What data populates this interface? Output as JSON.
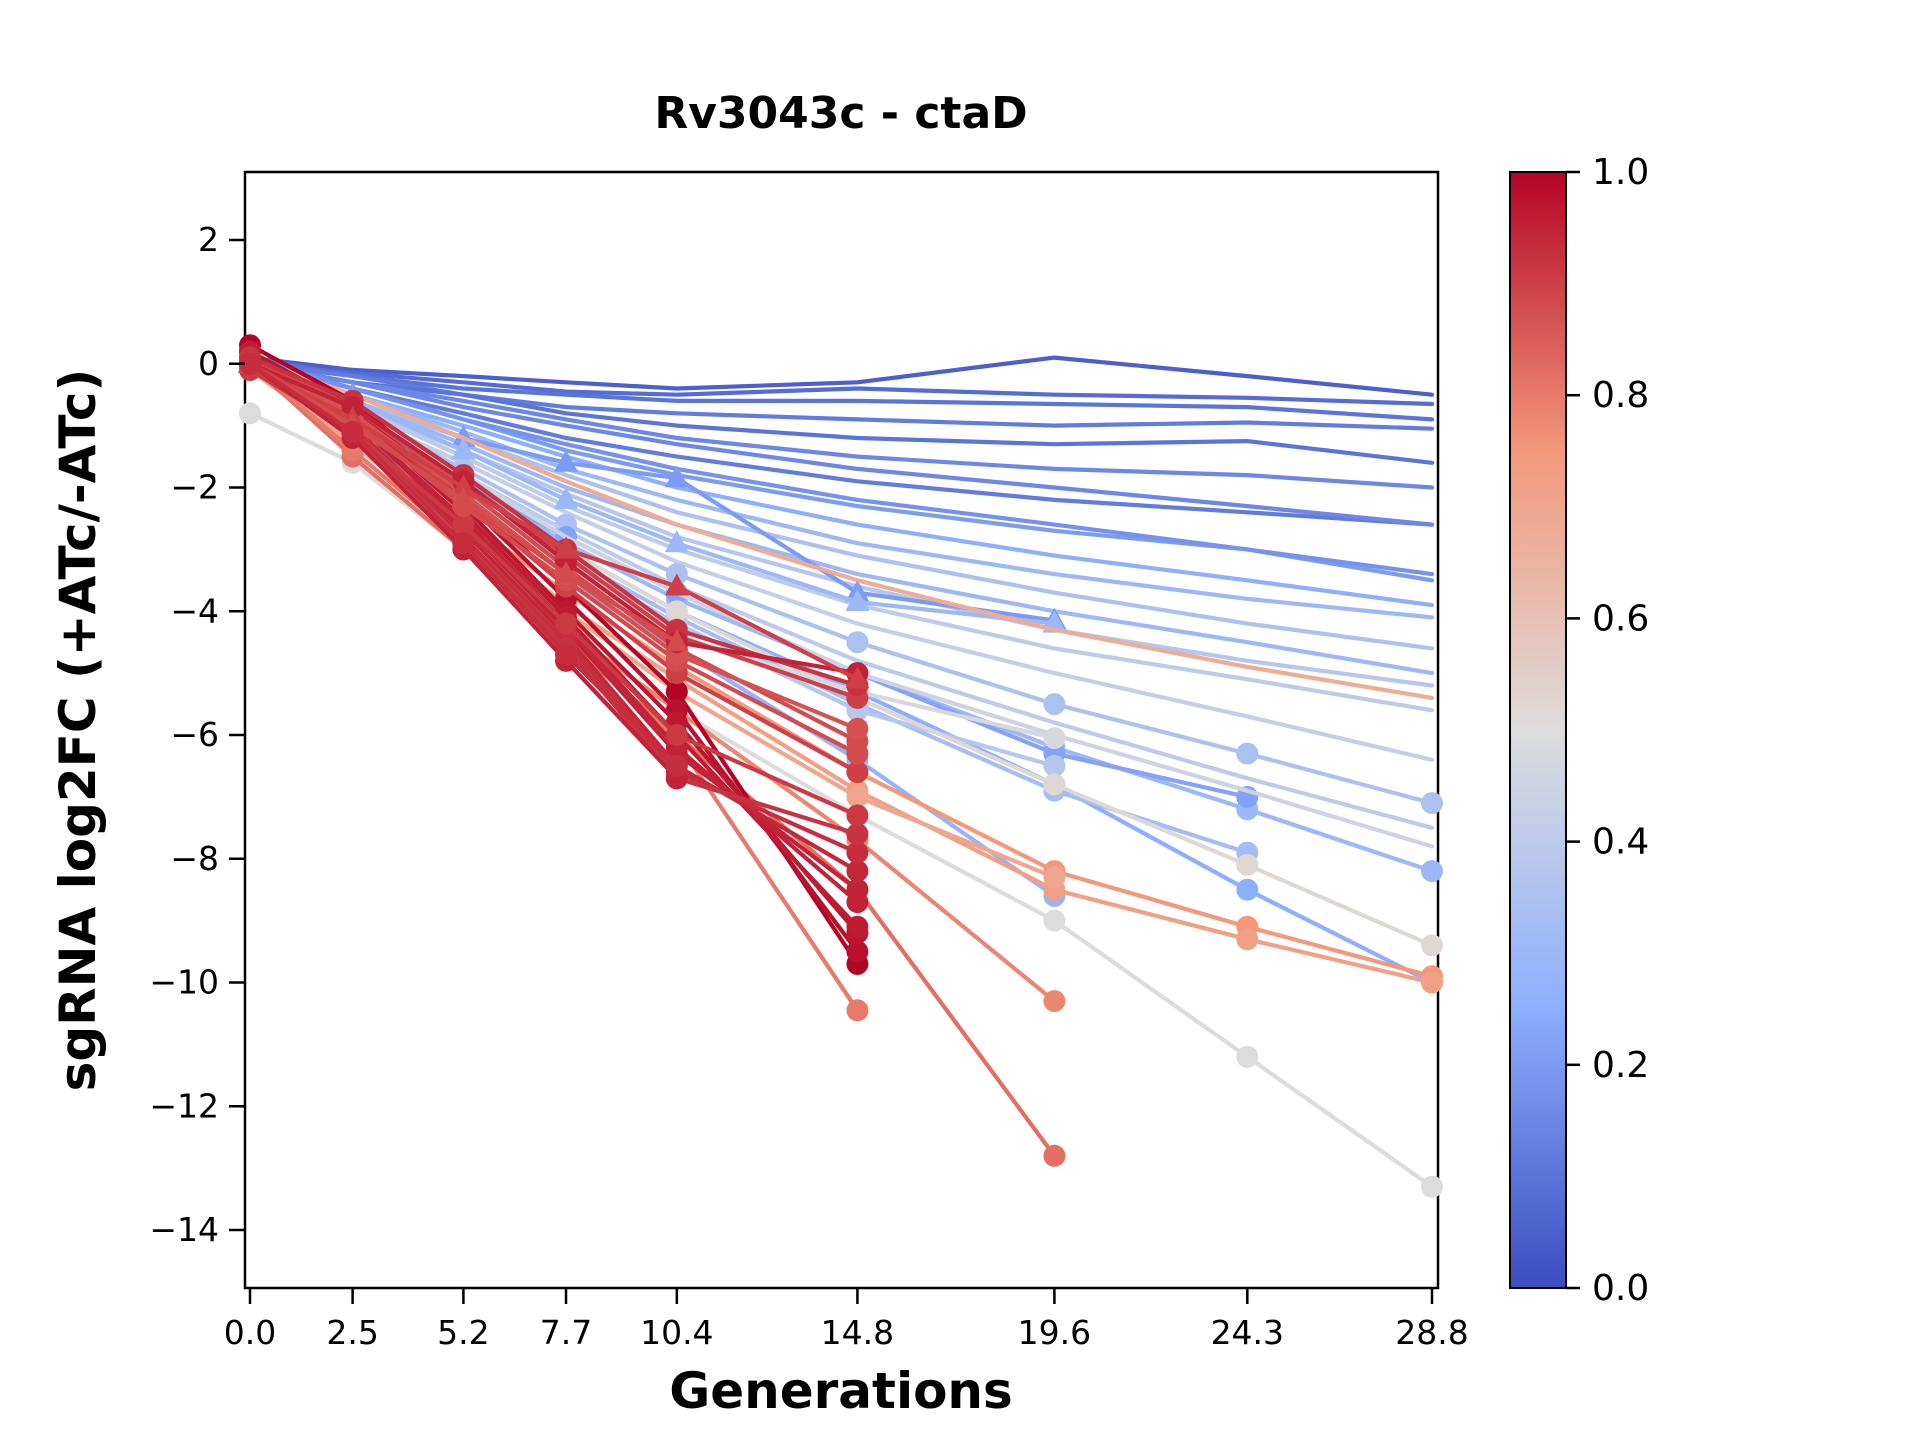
{
  "chart_data": {
    "type": "line",
    "title": "Rv3043c - ctaD",
    "xlabel": "Generations",
    "ylabel": "sgRNA log2FC (+ATc/-ATc)",
    "x": [
      0.0,
      2.5,
      5.2,
      7.7,
      10.4,
      14.8,
      19.6,
      24.3,
      28.8
    ],
    "xtick_labels": [
      "0.0",
      "2.5",
      "5.2",
      "7.7",
      "10.4",
      "14.8",
      "19.6",
      "24.3",
      "28.8"
    ],
    "ytick_values": [
      2,
      0,
      -2,
      -4,
      -6,
      -8,
      -10,
      -12,
      -14
    ],
    "ytick_labels": [
      "2",
      "0",
      "−2",
      "−4",
      "−6",
      "−8",
      "−10",
      "−12",
      "−14"
    ],
    "xlim": [
      -0.35,
      29.15
    ],
    "ylim": [
      -14.95,
      3.1
    ],
    "grid": false,
    "legend": "none",
    "colorbar": {
      "ticks": [
        "1.0",
        "0.8",
        "0.6",
        "0.4",
        "0.2",
        "0.0"
      ],
      "tick_values": [
        1.0,
        0.8,
        0.6,
        0.4,
        0.2,
        0.0
      ],
      "colormap": "coolwarm",
      "anchor_colors": [
        "#3b4cc0",
        "#8caffe",
        "#dddcdc",
        "#f4987a",
        "#b40426"
      ]
    },
    "series_note": "v = colormap value (0=blue,1=red); y aligned to x from start, shorter series end early; marker at every point when not none",
    "series": [
      {
        "v": 0.05,
        "marker": "none",
        "y": [
          0.1,
          -0.1,
          -0.2,
          -0.3,
          -0.4,
          -0.3,
          0.1,
          -0.2,
          -0.5
        ]
      },
      {
        "v": 0.08,
        "marker": "none",
        "y": [
          0,
          -0.15,
          -0.3,
          -0.45,
          -0.5,
          -0.4,
          -0.5,
          -0.55,
          -0.65
        ]
      },
      {
        "v": 0.1,
        "marker": "none",
        "y": [
          0.1,
          -0.2,
          -0.4,
          -0.5,
          -0.6,
          -0.6,
          -0.65,
          -0.7,
          -0.9
        ]
      },
      {
        "v": 0.12,
        "marker": "none",
        "y": [
          0,
          -0.2,
          -0.5,
          -0.7,
          -0.8,
          -0.9,
          -1.0,
          -0.95,
          -1.05
        ]
      },
      {
        "v": 0.1,
        "marker": "none",
        "y": [
          0,
          -0.3,
          -0.5,
          -0.8,
          -1.0,
          -1.2,
          -1.3,
          -1.25,
          -1.6
        ]
      },
      {
        "v": 0.15,
        "marker": "none",
        "y": [
          0,
          -0.3,
          -0.6,
          -0.9,
          -1.2,
          -1.5,
          -1.7,
          -1.8,
          -2.0
        ]
      },
      {
        "v": 0.12,
        "marker": "none",
        "y": [
          0.1,
          -0.4,
          -0.8,
          -1.2,
          -1.5,
          -1.9,
          -2.2,
          -2.4,
          -2.6
        ]
      },
      {
        "v": 0.15,
        "marker": "none",
        "y": [
          0,
          -0.3,
          -0.7,
          -1.0,
          -1.3,
          -1.7,
          -2.0,
          -2.3,
          -2.6
        ]
      },
      {
        "v": 0.2,
        "marker": "none",
        "y": [
          0,
          -0.4,
          -0.9,
          -1.4,
          -1.8,
          -2.3,
          -2.7,
          -3.0,
          -3.5
        ]
      },
      {
        "v": 0.18,
        "marker": "none",
        "y": [
          0.1,
          -0.4,
          -0.9,
          -1.3,
          -1.7,
          -2.2,
          -2.6,
          -3.0,
          -3.4
        ]
      },
      {
        "v": 0.25,
        "marker": "none",
        "y": [
          0,
          -0.5,
          -1.0,
          -1.5,
          -2.0,
          -2.6,
          -3.1,
          -3.5,
          -3.9
        ]
      },
      {
        "v": 0.3,
        "marker": "none",
        "y": [
          0,
          -0.5,
          -1.1,
          -1.7,
          -2.2,
          -2.9,
          -3.4,
          -3.8,
          -4.1
        ]
      },
      {
        "v": 0.35,
        "marker": "none",
        "y": [
          0.1,
          -0.6,
          -1.2,
          -1.8,
          -2.4,
          -3.1,
          -3.7,
          -4.2,
          -4.6
        ]
      },
      {
        "v": 0.3,
        "marker": "none",
        "y": [
          0,
          -0.6,
          -1.3,
          -2.0,
          -2.6,
          -3.4,
          -4.0,
          -4.5,
          -5.0
        ]
      },
      {
        "v": 0.38,
        "marker": "none",
        "y": [
          0,
          -0.7,
          -1.4,
          -2.1,
          -2.8,
          -3.6,
          -4.3,
          -4.8,
          -5.2
        ]
      },
      {
        "v": 0.4,
        "marker": "none",
        "y": [
          0,
          -0.7,
          -1.5,
          -2.3,
          -3.0,
          -3.9,
          -4.6,
          -5.1,
          -5.6
        ]
      },
      {
        "v": 0.42,
        "marker": "none",
        "y": [
          0,
          -0.8,
          -1.6,
          -2.4,
          -3.2,
          -4.2,
          -5.0,
          -5.7,
          -6.4
        ]
      },
      {
        "v": 0.35,
        "marker": "circle",
        "y": [
          0,
          -0.8,
          -1.7,
          -2.6,
          -3.4,
          -4.5,
          -5.5,
          -6.3,
          -7.1
        ]
      },
      {
        "v": 0.4,
        "marker": "none",
        "y": [
          0,
          -0.9,
          -1.8,
          -2.7,
          -3.6,
          -4.8,
          -5.8,
          -6.7,
          -7.5
        ]
      },
      {
        "v": 0.3,
        "marker": "circle",
        "y": [
          -0.1,
          -0.9,
          -1.9,
          -2.9,
          -3.8,
          -5.0,
          -6.2,
          -7.2,
          -8.2
        ]
      },
      {
        "v": 0.25,
        "marker": "circle",
        "y": [
          0,
          -1.0,
          -2.0,
          -3.0,
          -4.0,
          -5.3,
          -6.8,
          -8.5,
          -10.0
        ]
      },
      {
        "v": 0.2,
        "marker": "triangle",
        "y": [
          0,
          -0.5,
          -1.2,
          -1.6,
          -1.85,
          -3.7,
          -4.15
        ]
      },
      {
        "v": 0.3,
        "marker": "triangle",
        "y": [
          0,
          -0.6,
          -1.4,
          -2.2,
          -2.9,
          -3.85,
          -4.2
        ]
      },
      {
        "v": 0.22,
        "marker": "circle",
        "y": [
          0,
          -0.9,
          -1.9,
          -2.8,
          -3.7,
          -5.0,
          -6.3,
          -7.0
        ]
      },
      {
        "v": 0.33,
        "marker": "circle",
        "y": [
          0,
          -1.0,
          -2.1,
          -3.1,
          -4.1,
          -5.5,
          -6.9,
          -7.9
        ]
      },
      {
        "v": 0.28,
        "marker": "circle",
        "y": [
          0,
          -1.1,
          -2.3,
          -3.5,
          -4.6,
          -6.4,
          -8.6
        ]
      },
      {
        "v": 0.38,
        "marker": "circle",
        "y": [
          0,
          -1.0,
          -2.1,
          -3.2,
          -4.2,
          -5.6,
          -6.5
        ]
      },
      {
        "v": 0.45,
        "marker": "none",
        "y": [
          0,
          -0.8,
          -1.8,
          -2.8,
          -3.7,
          -5.0,
          -6.0,
          -6.9,
          -7.8
        ]
      },
      {
        "v": 0.5,
        "marker": "circle",
        "y": [
          -0.8,
          -1.6,
          -3.0,
          -4.35,
          -5.6,
          -7.3,
          -9.0,
          -11.2,
          -13.3
        ]
      },
      {
        "v": 0.52,
        "marker": "circle",
        "y": [
          0,
          -0.9,
          -2.0,
          -3.0,
          -4.0,
          -5.4,
          -6.8,
          -8.1,
          -9.4
        ]
      },
      {
        "v": 0.48,
        "marker": "circle",
        "y": [
          0,
          -1.0,
          -2.2,
          -3.3,
          -4.4,
          -5.3,
          -6.05
        ]
      },
      {
        "v": 0.68,
        "marker": "none",
        "y": [
          0.1,
          -0.5,
          -1.2,
          -1.9,
          -2.6,
          -3.5,
          -4.3,
          -4.9,
          -5.4
        ]
      },
      {
        "v": 0.75,
        "marker": "circle",
        "y": [
          0,
          -1.2,
          -2.5,
          -3.7,
          -4.9,
          -6.6,
          -8.2,
          -9.1,
          -9.9
        ]
      },
      {
        "v": 0.72,
        "marker": "circle",
        "y": [
          -0.1,
          -1.3,
          -2.6,
          -3.9,
          -5.1,
          -6.9,
          -8.5,
          -9.3,
          -10.0
        ]
      },
      {
        "v": 0.7,
        "marker": "circle",
        "y": [
          0,
          -1.3,
          -2.7,
          -4.0,
          -5.3,
          -7.0,
          -8.3
        ]
      },
      {
        "v": 0.78,
        "marker": "circle",
        "y": [
          0,
          -1.4,
          -2.9,
          -4.3,
          -5.6,
          -7.7,
          -10.3
        ]
      },
      {
        "v": 0.82,
        "marker": "circle",
        "y": [
          0,
          -1.5,
          -3.0,
          -4.5,
          -6.0,
          -8.5,
          -12.8
        ]
      },
      {
        "v": 0.8,
        "marker": "circle",
        "y": [
          0,
          -1.4,
          -2.9,
          -4.4,
          -6.1,
          -10.45
        ]
      },
      {
        "v": 1.0,
        "marker": "circle",
        "y": [
          0.3,
          -0.6,
          -2.1,
          -3.6,
          -5.3,
          -9.7
        ]
      },
      {
        "v": 0.98,
        "marker": "circle",
        "y": [
          0.2,
          -0.7,
          -2.2,
          -3.8,
          -5.6,
          -9.5
        ]
      },
      {
        "v": 0.97,
        "marker": "circle",
        "y": [
          0.1,
          -0.8,
          -2.3,
          -4.0,
          -5.8,
          -9.2
        ]
      },
      {
        "v": 0.96,
        "marker": "circle",
        "y": [
          0.2,
          -0.8,
          -2.4,
          -4.1,
          -6.0,
          -9.1
        ]
      },
      {
        "v": 0.95,
        "marker": "circle",
        "y": [
          0.1,
          -0.9,
          -2.5,
          -4.2,
          -6.2,
          -8.7
        ]
      },
      {
        "v": 0.95,
        "marker": "circle",
        "y": [
          0,
          -0.9,
          -2.6,
          -4.3,
          -6.3,
          -8.5
        ]
      },
      {
        "v": 0.94,
        "marker": "circle",
        "y": [
          0.1,
          -1.0,
          -2.7,
          -4.4,
          -6.5,
          -8.2
        ]
      },
      {
        "v": 0.93,
        "marker": "circle",
        "y": [
          0,
          -1.0,
          -2.8,
          -4.5,
          -6.6,
          -7.9
        ]
      },
      {
        "v": 0.92,
        "marker": "circle",
        "y": [
          0,
          -1.1,
          -2.9,
          -4.6,
          -6.7,
          -7.6
        ]
      },
      {
        "v": 0.91,
        "marker": "circle",
        "y": [
          -0.1,
          -1.1,
          -2.6,
          -4.2,
          -6.0,
          -7.3
        ]
      },
      {
        "v": 0.9,
        "marker": "circle",
        "y": [
          0.1,
          -0.8,
          -2.2,
          -3.6,
          -5.0,
          -6.6
        ]
      },
      {
        "v": 0.88,
        "marker": "circle",
        "y": [
          0,
          -0.9,
          -2.3,
          -3.5,
          -4.8,
          -6.3
        ]
      },
      {
        "v": 0.88,
        "marker": "circle",
        "y": [
          0.1,
          -0.7,
          -2.0,
          -3.3,
          -4.6,
          -6.1
        ]
      },
      {
        "v": 0.87,
        "marker": "circle",
        "y": [
          0,
          -0.8,
          -2.1,
          -3.4,
          -4.7,
          -5.9
        ]
      },
      {
        "v": 0.9,
        "marker": "circle",
        "y": [
          0,
          -0.7,
          -1.9,
          -3.1,
          -4.4,
          -5.4
        ]
      },
      {
        "v": 0.92,
        "marker": "circle",
        "y": [
          0.1,
          -0.6,
          -1.8,
          -3.0,
          -4.3,
          -5.2
        ]
      },
      {
        "v": 0.95,
        "marker": "circle",
        "y": [
          0,
          -0.7,
          -1.9,
          -3.2,
          -4.5,
          -5.0
        ]
      },
      {
        "v": 0.9,
        "marker": "triangle",
        "y": [
          0,
          -0.9,
          -2.0,
          -3.0,
          -3.6,
          -5.1
        ]
      },
      {
        "v": 0.88,
        "marker": "triangle",
        "y": [
          0,
          -1.0,
          -2.2,
          -3.4,
          -4.5
        ]
      },
      {
        "v": 0.95,
        "marker": "circle",
        "y": [
          0,
          -1.2,
          -3.0,
          -4.8,
          -6.7
        ]
      },
      {
        "v": 0.93,
        "marker": "circle",
        "y": [
          0,
          -1.1,
          -2.9,
          -4.7,
          -6.5
        ]
      }
    ]
  }
}
